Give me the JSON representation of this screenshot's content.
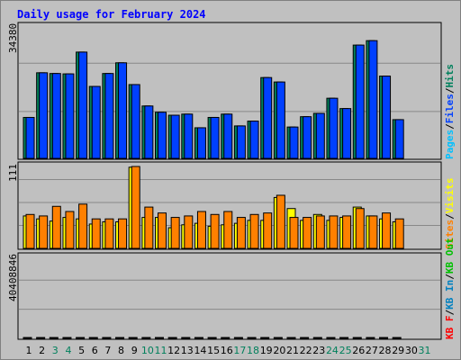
{
  "title": "Daily usage for February 2024",
  "colors": {
    "background": "#c0c0c0",
    "panel": "#c0c0c0",
    "title": "#0000ff",
    "hits": "#00805c",
    "files": "#0040ff",
    "pages": "#00c0ff",
    "visits": "#ffff00",
    "sites": "#ff8000",
    "kb_in": "#0080c0",
    "kb_out": "#00c000",
    "kb_f": "#ff0000",
    "weekday": "#000000",
    "weekend": "#00805c"
  },
  "chart_data": [
    {
      "type": "bar",
      "panel": "hits-files-pages",
      "ymax_label": "34380",
      "ylim": [
        0,
        34380
      ],
      "legend": [
        {
          "label": "Pages",
          "color": "#00c0ff"
        },
        {
          "label": "/",
          "color": "#000000"
        },
        {
          "label": "Files",
          "color": "#0040ff"
        },
        {
          "label": "/",
          "color": "#000000"
        },
        {
          "label": "Hits",
          "color": "#00805c"
        }
      ],
      "series": [
        {
          "name": "Hits",
          "color": "#00805c",
          "values": [
            11100,
            23200,
            23000,
            22900,
            28800,
            19500,
            23000,
            25900,
            20000,
            14200,
            12500,
            11700,
            12000,
            8300,
            11100,
            12000,
            8800,
            10100,
            21900,
            20700,
            8500,
            11300,
            12200,
            16300,
            13500,
            30700,
            31900,
            22300,
            10500
          ]
        },
        {
          "name": "Files",
          "color": "#0040ff",
          "values": [
            11100,
            23200,
            23000,
            22900,
            28800,
            19500,
            23000,
            25900,
            20000,
            14200,
            12500,
            11700,
            12000,
            8300,
            11100,
            12000,
            8800,
            10100,
            21900,
            20700,
            8500,
            11300,
            12200,
            16300,
            13500,
            30700,
            31900,
            22300,
            10500
          ]
        }
      ]
    },
    {
      "type": "bar",
      "panel": "visits-sites",
      "ymax_label": "111",
      "ylim": [
        0,
        111
      ],
      "legend": [
        {
          "label": "Sites",
          "color": "#ff8000"
        },
        {
          "label": "/",
          "color": "#000000"
        },
        {
          "label": "Visits",
          "color": "#ffff00"
        }
      ],
      "series": [
        {
          "name": "Visits",
          "color": "#ffff00",
          "values": [
            44,
            40,
            37,
            42,
            40,
            33,
            36,
            36,
            110,
            42,
            42,
            28,
            32,
            34,
            30,
            32,
            34,
            38,
            38,
            69,
            54,
            38,
            46,
            38,
            42,
            56,
            44,
            40,
            36
          ]
        },
        {
          "name": "Sites",
          "color": "#ff8000",
          "values": [
            46,
            44,
            57,
            50,
            60,
            40,
            40,
            40,
            111,
            56,
            48,
            42,
            44,
            50,
            46,
            50,
            42,
            46,
            48,
            72,
            42,
            42,
            44,
            44,
            44,
            54,
            44,
            48,
            40
          ]
        }
      ]
    },
    {
      "type": "bar",
      "panel": "kbf-kbin-kbout",
      "ymax_label": "40408846",
      "ylim": [
        0,
        40408846
      ],
      "legend": [
        {
          "label": "KB F",
          "color": "#ff0000"
        },
        {
          "label": "/",
          "color": "#000000"
        },
        {
          "label": "KB In",
          "color": "#0080c0"
        },
        {
          "label": "/",
          "color": "#000000"
        },
        {
          "label": "KB Out",
          "color": "#00c000"
        }
      ],
      "series": [
        {
          "name": "KB F",
          "color": "#ff0000",
          "values": [
            18200,
            30500,
            32800,
            33600,
            40400,
            23900,
            26300,
            33600,
            24200,
            11200,
            14800,
            14800,
            13800,
            10200,
            12600,
            12600,
            11000,
            12400,
            19900,
            21400,
            11800,
            11200,
            11400,
            17700,
            17700,
            33000,
            38100,
            29300,
            12600
          ]
        }
      ]
    }
  ],
  "x_axis": {
    "days": [
      "1",
      "2",
      "3",
      "4",
      "5",
      "6",
      "7",
      "8",
      "9",
      "10",
      "11",
      "12",
      "13",
      "14",
      "15",
      "16",
      "17",
      "18",
      "19",
      "20",
      "21",
      "22",
      "23",
      "24",
      "25",
      "26",
      "27",
      "28",
      "29",
      "30",
      "31"
    ],
    "weekend": [
      false,
      false,
      true,
      true,
      false,
      false,
      false,
      false,
      false,
      true,
      true,
      false,
      false,
      false,
      false,
      false,
      true,
      true,
      false,
      false,
      false,
      false,
      false,
      true,
      true,
      false,
      false,
      false,
      false,
      false,
      true
    ]
  }
}
